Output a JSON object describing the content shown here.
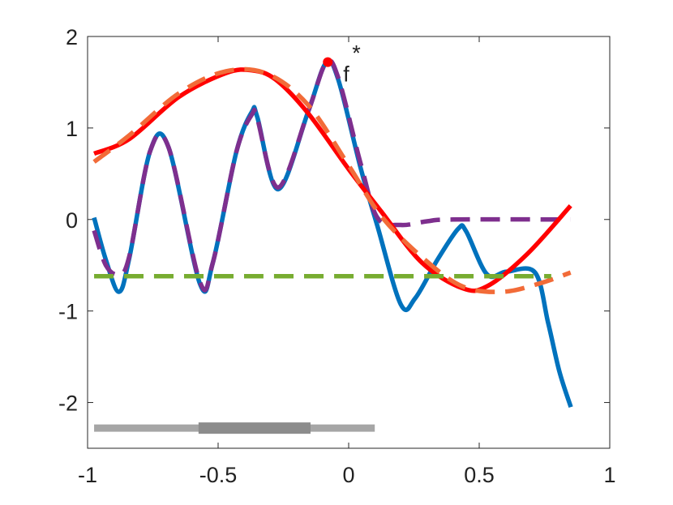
{
  "chart_data": {
    "type": "line",
    "xlim": [
      -1,
      1
    ],
    "ylim": [
      -2.5,
      2
    ],
    "xticks": [
      -1,
      -0.5,
      0,
      0.5,
      1
    ],
    "yticks": [
      -2,
      -1,
      0,
      1,
      2
    ],
    "series": [
      {
        "color": "#0072BD",
        "dash": false,
        "x": [
          -0.975,
          -0.93,
          -0.88,
          -0.84,
          -0.76,
          -0.69,
          -0.57,
          -0.52,
          -0.43,
          -0.37,
          -0.35,
          -0.27,
          -0.155,
          -0.087,
          -0.04,
          0.047,
          0.11,
          0.2,
          0.255,
          0.34,
          0.42,
          0.45,
          0.53,
          0.605,
          0.714,
          0.764,
          0.807,
          0.851
        ],
        "values": [
          0.02,
          -0.44,
          -0.79,
          -0.42,
          0.75,
          0.79,
          -0.7,
          -0.47,
          0.74,
          1.18,
          1.12,
          0.33,
          1.18,
          1.71,
          1.53,
          0.55,
          -0.07,
          -0.93,
          -0.86,
          -0.44,
          -0.1,
          -0.13,
          -0.6,
          -0.57,
          -0.58,
          -1.13,
          -1.66,
          -2.05
        ]
      },
      {
        "color": "#7E2F8E",
        "dash": true,
        "x": [
          -0.975,
          -0.93,
          -0.88,
          -0.84,
          -0.76,
          -0.69,
          -0.57,
          -0.52,
          -0.43,
          -0.37,
          -0.35,
          -0.27,
          -0.155,
          -0.087,
          -0.04,
          0.047,
          0.11,
          0.2,
          0.3,
          0.4,
          0.85
        ],
        "values": [
          -0.12,
          -0.5,
          -0.6,
          -0.4,
          0.75,
          0.79,
          -0.68,
          -0.47,
          0.74,
          1.15,
          1.1,
          0.35,
          1.18,
          1.71,
          1.55,
          0.6,
          0.02,
          -0.06,
          -0.02,
          0,
          0
        ]
      },
      {
        "color": "#FF0000",
        "dash": false,
        "x": [
          -0.975,
          -0.84,
          -0.65,
          -0.47,
          -0.37,
          -0.28,
          -0.155,
          0,
          0.124,
          0.28,
          0.435,
          0.53,
          0.683,
          0.85
        ],
        "values": [
          0.72,
          0.88,
          1.34,
          1.6,
          1.63,
          1.53,
          1.16,
          0.55,
          0.09,
          -0.47,
          -0.75,
          -0.73,
          -0.38,
          0.15
        ]
      },
      {
        "color": "#F26B38",
        "dash": true,
        "x": [
          -0.975,
          -0.84,
          -0.65,
          -0.47,
          -0.31,
          -0.155,
          0,
          0.124,
          0.28,
          0.435,
          0.59,
          0.73,
          0.85
        ],
        "values": [
          0.63,
          0.92,
          1.38,
          1.62,
          1.59,
          1.25,
          0.59,
          0.04,
          -0.41,
          -0.73,
          -0.79,
          -0.7,
          -0.58
        ]
      },
      {
        "color": "#77AC30",
        "dash": true,
        "x": [
          -0.975,
          0.776
        ],
        "values": [
          -0.62,
          -0.62
        ]
      }
    ],
    "intervals": [
      {
        "x": [
          -0.975,
          0.1
        ],
        "y": -2.28,
        "color": "#A6A6A6"
      },
      {
        "x": [
          -0.575,
          -0.146
        ],
        "y": -2.28,
        "color": "#8C8C8C"
      }
    ],
    "point": {
      "x": -0.08,
      "y": 1.72,
      "color": "#FF0000",
      "text": "f",
      "superscript": "*"
    }
  }
}
